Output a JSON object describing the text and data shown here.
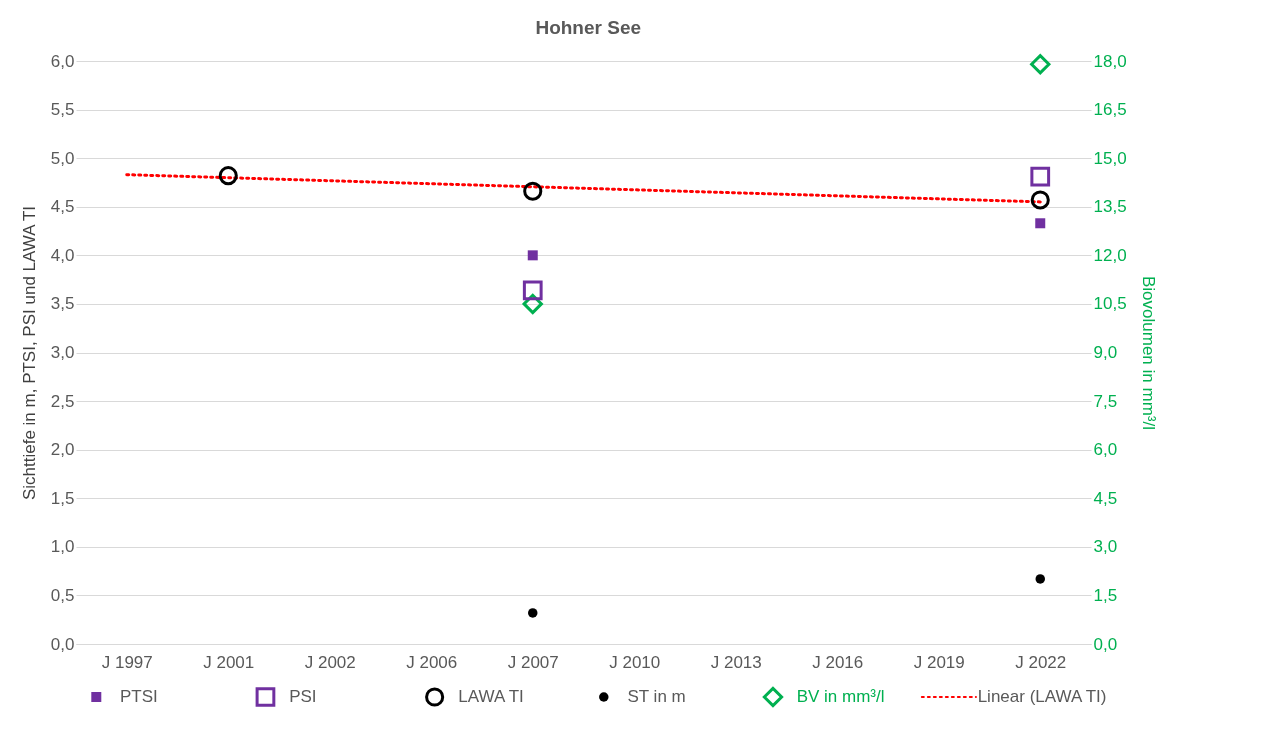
{
  "chart_data": {
    "type": "scatter",
    "title": "Hohner See",
    "ylabel": "Sichttiefe in m, PTSI, PSI und LAWA TI",
    "y2label": "Biovolumen in mm³/l",
    "categories": [
      "J 1997",
      "J 2001",
      "J 2002",
      "J 2006",
      "J 2007",
      "J 2010",
      "J 2013",
      "J 2016",
      "J 2019",
      "J 2022"
    ],
    "series": [
      {
        "name": "PTSI",
        "color": "#7030a0",
        "marker": "square",
        "values": [
          null,
          null,
          null,
          null,
          4.0,
          null,
          null,
          null,
          null,
          4.33
        ]
      },
      {
        "name": "PSI",
        "color": "#7030a0",
        "marker": "square",
        "values": [
          null,
          null,
          null,
          null,
          3.64,
          null,
          null,
          null,
          null,
          4.81
        ]
      },
      {
        "name": "LAWA TI",
        "color": "#000000",
        "marker": "circle",
        "values": [
          null,
          4.82,
          null,
          null,
          4.66,
          null,
          null,
          null,
          null,
          4.57
        ]
      },
      {
        "name": "ST in m",
        "color": "#000000",
        "marker": "circle",
        "values": [
          null,
          null,
          null,
          null,
          0.32,
          null,
          null,
          null,
          null,
          0.67
        ]
      },
      {
        "name": "BV in mm³/l",
        "color": "#00b050",
        "marker": "diamond",
        "axis": "y2",
        "values": [
          null,
          null,
          null,
          null,
          10.5,
          null,
          null,
          null,
          null,
          17.9
        ]
      },
      {
        "name": "Linear (LAWA TI)",
        "type": "line",
        "color": "#ff0000",
        "line_style": "dotted",
        "x": [
          "J 1997",
          "J 2022"
        ],
        "values": [
          4.83,
          4.55
        ]
      }
    ],
    "ylim": [
      0,
      6
    ],
    "yticks": [
      {
        "value": 0,
        "label": "0,0"
      },
      {
        "value": 0.5,
        "label": "0,5"
      },
      {
        "value": 1,
        "label": "1,0"
      },
      {
        "value": 1.5,
        "label": "1,5"
      },
      {
        "value": 2,
        "label": "2,0"
      },
      {
        "value": 2.5,
        "label": "2,5"
      },
      {
        "value": 3,
        "label": "3,0"
      },
      {
        "value": 3.5,
        "label": "3,5"
      },
      {
        "value": 4,
        "label": "4,0"
      },
      {
        "value": 4.5,
        "label": "4,5"
      },
      {
        "value": 5,
        "label": "5,0"
      },
      {
        "value": 5.5,
        "label": "5,5"
      },
      {
        "value": 6,
        "label": "6,0"
      }
    ],
    "y2lim": [
      0,
      18
    ],
    "y2ticks": [
      {
        "value": 0,
        "label": "0,0"
      },
      {
        "value": 1.5,
        "label": "1,5"
      },
      {
        "value": 3,
        "label": "3,0"
      },
      {
        "value": 4.5,
        "label": "4,5"
      },
      {
        "value": 6,
        "label": "6,0"
      },
      {
        "value": 7.5,
        "label": "7,5"
      },
      {
        "value": 9,
        "label": "9,0"
      },
      {
        "value": 10.5,
        "label": "10,5"
      },
      {
        "value": 12,
        "label": "12,0"
      },
      {
        "value": 13.5,
        "label": "13,5"
      },
      {
        "value": 15,
        "label": "15,0"
      },
      {
        "value": 16.5,
        "label": "16,5"
      },
      {
        "value": 18,
        "label": "18,0"
      }
    ],
    "grid": "y",
    "legend": "bottom"
  }
}
